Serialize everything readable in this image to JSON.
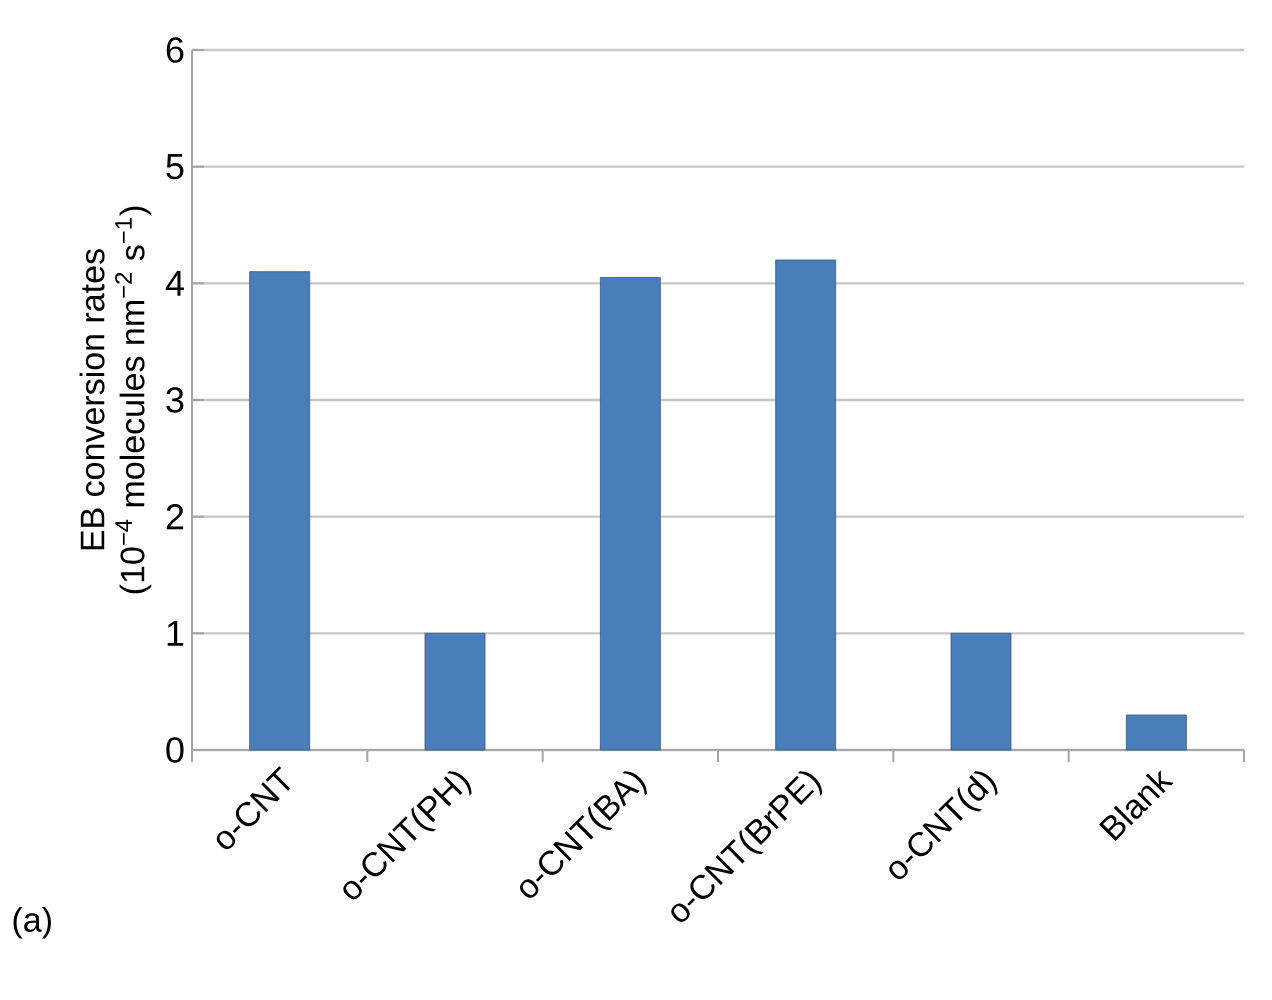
{
  "chart_data": {
    "type": "bar",
    "categories": [
      "o-CNT",
      "o-CNT(PH)",
      "o-CNT(BA)",
      "o-CNT(BrPE)",
      "o-CNT(d)",
      "Blank"
    ],
    "values": [
      4.1,
      1.0,
      4.05,
      4.2,
      1.0,
      0.3
    ],
    "color": "#4a7ebb",
    "ylabel": "EB conversion rates\n(10$^{−4}$ molecules nm$^{−2}$ s$^{−1}$)",
    "ylim": [
      0,
      6
    ],
    "yticks": [
      0,
      1,
      2,
      3,
      4,
      5,
      6
    ],
    "grid": "y",
    "annotations": [
      "(a)"
    ]
  }
}
